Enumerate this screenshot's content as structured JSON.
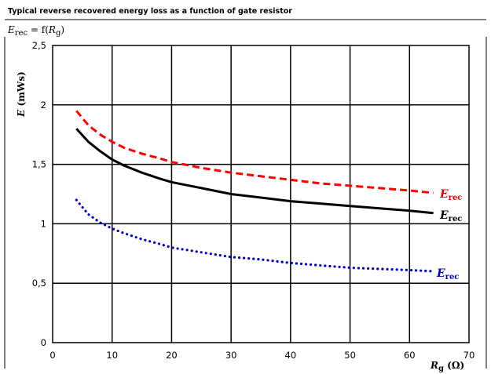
{
  "header": {
    "title": "Typical reverse recovered energy loss as a function of gate resistor",
    "formula": {
      "lhs_symbol": "E",
      "lhs_sub": "rec",
      "rhs_prefix": " = f(",
      "rhs_symbol": "R",
      "rhs_sub": "g",
      "rhs_suffix": ")"
    }
  },
  "chart_data": {
    "type": "line",
    "title": "Typical reverse recovered energy loss as a function of gate resistor",
    "xlabel": "R_g (Ω)",
    "ylabel": "E (mWs)",
    "xlim": [
      0,
      70
    ],
    "ylim": [
      0,
      2.5
    ],
    "xticks": [
      "0",
      "10",
      "20",
      "30",
      "40",
      "50",
      "60",
      "70"
    ],
    "yticks": [
      "0",
      "0,5",
      "1",
      "1,5",
      "2",
      "2,5"
    ],
    "grid": true,
    "series": [
      {
        "name": "E_rec",
        "color": "#000000",
        "style": "solid",
        "x": [
          4,
          6,
          8,
          10,
          12,
          15,
          18,
          20,
          25,
          30,
          35,
          40,
          45,
          50,
          55,
          60,
          64
        ],
        "y": [
          1.8,
          1.69,
          1.61,
          1.54,
          1.49,
          1.43,
          1.38,
          1.35,
          1.3,
          1.25,
          1.22,
          1.19,
          1.17,
          1.15,
          1.13,
          1.11,
          1.09
        ]
      },
      {
        "name": "E_rec",
        "color": "#ff0000",
        "style": "dashed",
        "x": [
          4,
          6,
          8,
          10,
          12,
          15,
          18,
          20,
          25,
          30,
          35,
          40,
          45,
          50,
          55,
          60,
          64
        ],
        "y": [
          1.95,
          1.83,
          1.75,
          1.69,
          1.64,
          1.59,
          1.55,
          1.52,
          1.47,
          1.43,
          1.4,
          1.37,
          1.34,
          1.32,
          1.3,
          1.28,
          1.26
        ]
      },
      {
        "name": "E_rec",
        "color": "#0000cc",
        "style": "dotted",
        "x": [
          4,
          6,
          8,
          10,
          12,
          15,
          18,
          20,
          25,
          30,
          35,
          40,
          45,
          50,
          55,
          60,
          64
        ],
        "y": [
          1.2,
          1.08,
          1.01,
          0.96,
          0.92,
          0.87,
          0.83,
          0.8,
          0.76,
          0.72,
          0.7,
          0.67,
          0.65,
          0.63,
          0.62,
          0.61,
          0.6
        ]
      }
    ],
    "labels": {
      "ylabel_symbol": "E",
      "ylabel_unit": " (mWs)",
      "xlabel_symbol": "R",
      "xlabel_sub": "g",
      "xlabel_unit": " (Ω)",
      "series_symbol": "E",
      "series_sub": "rec"
    }
  }
}
